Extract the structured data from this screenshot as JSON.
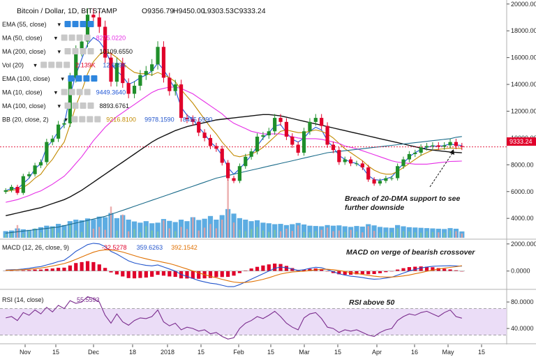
{
  "header": {
    "title": "Bitcoin / Dollar, 1D, BITSTAMP",
    "ohlc": {
      "open": "O9356.79",
      "high": "H9450.00",
      "low": "L9303.53",
      "close": "C9333.24"
    }
  },
  "indicators": [
    {
      "label": "EMA (55, close)",
      "values": [],
      "faded": true
    },
    {
      "label": "MA (50, close)",
      "values": [
        {
          "text": "8275.0220",
          "color": "#e62ee6"
        }
      ]
    },
    {
      "label": "MA (200, close)",
      "values": [
        {
          "text": "10109.6550",
          "color": "#111111"
        }
      ]
    },
    {
      "label": "Vol (20)",
      "values": [
        {
          "text": "2.139K",
          "color": "#e0002a"
        },
        {
          "text": "12.639K",
          "color": "#2255cc"
        }
      ]
    },
    {
      "label": "EMA (100, close)",
      "values": [],
      "faded": true
    },
    {
      "label": "MA (10, close)",
      "values": [
        {
          "text": "9449.3640",
          "color": "#1f55d6"
        }
      ]
    },
    {
      "label": "MA (100, close)",
      "values": [
        {
          "text": "8893.6761",
          "color": "#111111"
        }
      ]
    },
    {
      "label": "BB (20, close, 2)",
      "values": [
        {
          "text": "9216.8100",
          "color": "#c28a00"
        },
        {
          "text": "9978.1590",
          "color": "#2255cc"
        },
        {
          "text": "8455.5990",
          "color": "#2255cc"
        }
      ]
    }
  ],
  "price_label": "9333.24",
  "annotations": {
    "main": [
      "Breach of 20-DMA support to see",
      "further downside"
    ],
    "macd": "MACD on verge of bearish crossover",
    "rsi": "RSI above 50"
  },
  "macd": {
    "label": "MACD (12, 26, close, 9)",
    "values": [
      {
        "text": "-32.5278",
        "color": "#e0002a"
      },
      {
        "text": "359.6263",
        "color": "#2255cc"
      },
      {
        "text": "392.1542",
        "color": "#e07000"
      }
    ]
  },
  "rsi": {
    "label": "RSI (14, close)",
    "values": [
      {
        "text": "55.5593",
        "color": "#7b2d8e"
      }
    ]
  },
  "colors": {
    "candle_up": "#1f8f2a",
    "candle_down": "#e0002a",
    "ma10": "#1f55d6",
    "ma20": "#c28a00",
    "ma50": "#e62ee6",
    "ma100": "#111111",
    "ma200": "#1a6b8a",
    "volume": "#4aa3df",
    "volume_up": "#7fc7a0",
    "volume_down": "#e8a0a0",
    "macd_line": "#2255cc",
    "signal_line": "#e07000",
    "histogram": "#e0002a",
    "rsi_line": "#7b2d8e",
    "rsi_band": "#e6d5f5",
    "price_marker": "#e0002a"
  },
  "chart_data": [
    {
      "type": "candlestick",
      "title": "Bitcoin / Dollar, 1D, BITSTAMP",
      "x_ticks": [
        "Nov",
        "15",
        "Dec",
        "18",
        "2018",
        "15",
        "Feb",
        "15",
        "Mar",
        "15",
        "Apr",
        "16",
        "May",
        "15"
      ],
      "y_ticks": [
        4000,
        6000,
        8000,
        10000,
        12000,
        14000,
        16000,
        18000,
        20000
      ],
      "y_tick_labels": [
        "4000.00",
        "6000.00",
        "8000.00",
        "10000.00",
        "12000.00",
        "14000.00",
        "16000.00",
        "18000.00",
        "20000.00"
      ],
      "ylim": [
        2500,
        20300
      ],
      "last_price": 9333.24,
      "close_series": [
        6100,
        6350,
        5900,
        7150,
        7300,
        7950,
        8200,
        9700,
        9950,
        11000,
        11100,
        14500,
        16500,
        17200,
        19200,
        19000,
        18300,
        16000,
        14200,
        15600,
        14100,
        13300,
        13900,
        14700,
        15000,
        15500,
        16800,
        14500,
        13500,
        14000,
        11500,
        11400,
        11200,
        10400,
        10000,
        9400,
        9200,
        8150,
        7000,
        6800,
        7900,
        8600,
        9000,
        10100,
        10200,
        10500,
        11500,
        11200,
        10100,
        9500,
        8900,
        10500,
        11200,
        11500,
        10900,
        9500,
        9100,
        8200,
        8400,
        8100,
        8100,
        7800,
        6900,
        6600,
        6800,
        7000,
        7000,
        7900,
        8400,
        8800,
        8900,
        9300,
        9400,
        9450,
        9350,
        9450,
        9700,
        9400,
        9333
      ],
      "series": [
        {
          "name": "MA (10, close)",
          "values": [
            6050,
            6250,
            6200,
            6600,
            7000,
            7700,
            8100,
            9300,
            9800,
            10500,
            11000,
            13200,
            14700,
            15900,
            17000,
            17500,
            17200,
            16600,
            15600,
            15000,
            14600,
            14000,
            14200,
            14500,
            14700,
            15000,
            15600,
            15100,
            14400,
            13600,
            12300,
            11700,
            11400,
            10800,
            10300,
            9700,
            9300,
            8700,
            7800,
            7300,
            7700,
            8200,
            8700,
            9400,
            10000,
            10400,
            10900,
            11000,
            10400,
            9900,
            9700,
            10000,
            10500,
            10800,
            10600,
            9800,
            9300,
            8700,
            8400,
            8200,
            8100,
            7800,
            7200,
            6900,
            6850,
            6950,
            7100,
            7600,
            8100,
            8600,
            8900,
            9150,
            9300,
            9400,
            9380,
            9440,
            9550,
            9470,
            9450
          ]
        },
        {
          "name": "BB basis (20, close)",
          "values": [
            6000,
            6100,
            6150,
            6300,
            6600,
            7000,
            7300,
            7900,
            8400,
            9100,
            9700,
            11000,
            12400,
            13500,
            14800,
            15700,
            16200,
            16500,
            16300,
            16000,
            15600,
            15200,
            14900,
            14800,
            14800,
            14700,
            14900,
            14700,
            14500,
            14200,
            13600,
            13100,
            12600,
            12000,
            11400,
            10800,
            10300,
            9700,
            9200,
            8700,
            8600,
            8700,
            8800,
            9000,
            9300,
            9700,
            10100,
            10500,
            10600,
            10500,
            10400,
            10400,
            10500,
            10600,
            10500,
            10300,
            10000,
            9600,
            9200,
            8900,
            8600,
            8300,
            7900,
            7600,
            7400,
            7300,
            7300,
            7500,
            7800,
            8100,
            8400,
            8700,
            8900,
            9100,
            9150,
            9200,
            9250,
            9230,
            9217
          ]
        },
        {
          "name": "MA (50, close)",
          "values": [
            5200,
            5300,
            5400,
            5550,
            5700,
            5900,
            6050,
            6300,
            6550,
            6850,
            7150,
            7600,
            8100,
            8600,
            9200,
            9800,
            10300,
            10800,
            11200,
            11600,
            11900,
            12200,
            12500,
            12800,
            13100,
            13400,
            13600,
            13700,
            13800,
            13800,
            13700,
            13500,
            13300,
            13000,
            12700,
            12400,
            12100,
            11800,
            11400,
            11100,
            10900,
            10700,
            10500,
            10400,
            10300,
            10300,
            10300,
            10300,
            10200,
            10100,
            10000,
            9950,
            9950,
            9950,
            9900,
            9800,
            9700,
            9600,
            9400,
            9300,
            9200,
            9050,
            8900,
            8750,
            8600,
            8450,
            8300,
            8200,
            8150,
            8100,
            8050,
            8050,
            8050,
            8100,
            8150,
            8200,
            8250,
            8260,
            8275
          ]
        },
        {
          "name": "MA (100, close)",
          "values": [
            4200,
            4300,
            4400,
            4500,
            4600,
            4700,
            4800,
            4950,
            5100,
            5250,
            5400,
            5600,
            5850,
            6100,
            6400,
            6700,
            7000,
            7300,
            7600,
            7900,
            8200,
            8500,
            8800,
            9100,
            9400,
            9700,
            9950,
            10150,
            10350,
            10550,
            10700,
            10850,
            10950,
            11050,
            11150,
            11250,
            11350,
            11400,
            11450,
            11500,
            11550,
            11600,
            11650,
            11700,
            11750,
            11750,
            11700,
            11650,
            11550,
            11450,
            11350,
            11250,
            11150,
            11050,
            10950,
            10850,
            10750,
            10650,
            10550,
            10450,
            10350,
            10250,
            10150,
            10050,
            9950,
            9850,
            9750,
            9650,
            9550,
            9450,
            9350,
            9250,
            9150,
            9100,
            9050,
            9000,
            8950,
            8920,
            8894
          ]
        },
        {
          "name": "MA (200, close)",
          "values": [
            2900,
            2950,
            3000,
            3050,
            3100,
            3150,
            3200,
            3250,
            3300,
            3350,
            3450,
            3550,
            3650,
            3750,
            3850,
            3950,
            4050,
            4150,
            4300,
            4450,
            4600,
            4750,
            4900,
            5050,
            5200,
            5350,
            5500,
            5650,
            5800,
            5950,
            6100,
            6250,
            6400,
            6550,
            6700,
            6850,
            7000,
            7100,
            7200,
            7300,
            7400,
            7500,
            7600,
            7700,
            7800,
            7900,
            8000,
            8100,
            8200,
            8300,
            8400,
            8500,
            8600,
            8700,
            8800,
            8900,
            8950,
            9000,
            9050,
            9100,
            9150,
            9200,
            9250,
            9300,
            9350,
            9400,
            9450,
            9500,
            9550,
            9600,
            9650,
            9700,
            9750,
            9800,
            9850,
            9900,
            9950,
            10050,
            10110
          ]
        }
      ]
    },
    {
      "type": "bar",
      "title": "Vol (20)",
      "values": [
        2.2,
        2.4,
        3.1,
        2.8,
        2.6,
        3.0,
        3.5,
        4.0,
        3.8,
        4.6,
        4.2,
        5.5,
        6.0,
        5.8,
        6.4,
        6.1,
        7.0,
        6.8,
        8.2,
        6.5,
        7.5,
        6.0,
        5.4,
        5.0,
        5.5,
        4.8,
        5.0,
        6.2,
        5.6,
        5.2,
        6.0,
        5.5,
        6.8,
        5.9,
        6.3,
        7.2,
        6.0,
        7.5,
        9.5,
        8.0,
        6.5,
        6.0,
        5.5,
        5.8,
        5.0,
        4.8,
        4.5,
        4.6,
        4.2,
        4.5,
        4.9,
        4.4,
        4.0,
        3.9,
        3.8,
        4.2,
        4.0,
        4.1,
        3.8,
        3.6,
        3.9,
        3.7,
        4.5,
        4.1,
        3.6,
        3.4,
        3.3,
        4.2,
        3.8,
        3.5,
        3.4,
        3.3,
        3.2,
        3.1,
        3.0,
        2.9,
        3.2,
        3.0,
        2.1
      ],
      "spikes": [
        1.0,
        1.5,
        3.5,
        1.2,
        1.8,
        2.6,
        1.5,
        2.2,
        3.0,
        1.4,
        2.1,
        3.6,
        2.0,
        1.6,
        4.5,
        2.5,
        3.0,
        2.2,
        8.6,
        2.0,
        6.4,
        1.8,
        2.4,
        1.5,
        3.2,
        2.0,
        1.7,
        4.8,
        2.6,
        1.8,
        3.0,
        2.4,
        5.6,
        2.0,
        2.8,
        3.8,
        2.6,
        5.0,
        16.0,
        4.2,
        2.2,
        1.8,
        2.4,
        3.0,
        2.0,
        1.6,
        2.2,
        1.8,
        2.5,
        1.9,
        3.4,
        1.6,
        1.5,
        1.8,
        2.2,
        2.8,
        1.8,
        2.0,
        1.6,
        2.2,
        1.7,
        1.5,
        3.2,
        1.9,
        1.4,
        1.6,
        1.5,
        2.6,
        1.8,
        1.7,
        1.5,
        1.4,
        1.8,
        1.6,
        1.5,
        1.4,
        2.0,
        1.8,
        1.2
      ]
    },
    {
      "type": "line",
      "title": "MACD (12, 26, close, 9)",
      "y_ticks": [
        0,
        2000
      ],
      "y_tick_labels": [
        "0.0000",
        "2000.0000"
      ],
      "ylim": [
        -1300,
        2300
      ],
      "series": [
        {
          "name": "MACD",
          "values": [
            80,
            100,
            110,
            150,
            200,
            280,
            330,
            450,
            560,
            700,
            800,
            1100,
            1450,
            1700,
            1950,
            2050,
            2000,
            1800,
            1450,
            1250,
            1000,
            750,
            600,
            500,
            420,
            380,
            450,
            300,
            150,
            0,
            -250,
            -400,
            -550,
            -700,
            -800,
            -900,
            -950,
            -1050,
            -1150,
            -1150,
            -1000,
            -800,
            -600,
            -400,
            -200,
            0,
            200,
            300,
            250,
            150,
            50,
            100,
            200,
            280,
            250,
            100,
            -50,
            -200,
            -300,
            -380,
            -420,
            -480,
            -560,
            -600,
            -580,
            -520,
            -450,
            -300,
            -150,
            0,
            120,
            230,
            300,
            350,
            370,
            380,
            390,
            375,
            360
          ]
        },
        {
          "name": "Signal",
          "values": [
            60,
            70,
            85,
            100,
            130,
            170,
            220,
            290,
            370,
            460,
            550,
            690,
            860,
            1040,
            1220,
            1390,
            1510,
            1570,
            1550,
            1500,
            1400,
            1270,
            1140,
            1010,
            900,
            800,
            730,
            640,
            550,
            430,
            290,
            150,
            10,
            -130,
            -260,
            -390,
            -500,
            -610,
            -720,
            -810,
            -850,
            -840,
            -790,
            -710,
            -610,
            -490,
            -350,
            -220,
            -130,
            -70,
            -40,
            -10,
            40,
            90,
            130,
            130,
            100,
            40,
            -30,
            -110,
            -180,
            -250,
            -320,
            -380,
            -420,
            -440,
            -440,
            -410,
            -360,
            -290,
            -200,
            -110,
            -20,
            70,
            150,
            210,
            270,
            320,
            392
          ]
        }
      ]
    },
    {
      "type": "line",
      "title": "RSI (14, close)",
      "y_ticks": [
        40,
        80
      ],
      "y_tick_labels": [
        "40.0000",
        "80.0000"
      ],
      "ylim": [
        18,
        98
      ],
      "bands": [
        30,
        70
      ],
      "series": [
        {
          "name": "RSI",
          "values": [
            56,
            58,
            52,
            64,
            60,
            68,
            62,
            72,
            65,
            75,
            70,
            82,
            78,
            80,
            88,
            85,
            80,
            60,
            48,
            62,
            50,
            45,
            52,
            56,
            55,
            58,
            68,
            50,
            44,
            48,
            38,
            42,
            40,
            36,
            38,
            32,
            34,
            28,
            24,
            26,
            40,
            48,
            52,
            58,
            55,
            60,
            66,
            58,
            48,
            42,
            38,
            56,
            62,
            64,
            55,
            42,
            40,
            34,
            38,
            36,
            38,
            34,
            30,
            28,
            34,
            38,
            40,
            52,
            58,
            62,
            60,
            64,
            66,
            62,
            58,
            64,
            68,
            58,
            55.6
          ]
        }
      ]
    }
  ]
}
